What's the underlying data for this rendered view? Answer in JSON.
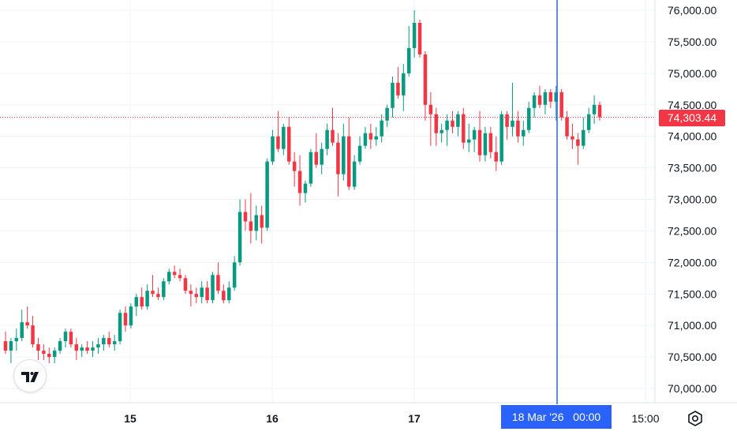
{
  "chart_data": {
    "type": "candlestick",
    "y_axis": {
      "range": [
        69700,
        76300
      ],
      "ticks": [
        "76,000.00",
        "75,500.00",
        "75,000.00",
        "74,500.00",
        "74,000.00",
        "73,500.00",
        "73,000.00",
        "72,500.00",
        "72,000.00",
        "71,500.00",
        "71,000.00",
        "70,500.00",
        "70,000.00"
      ],
      "tick_values": [
        76000,
        75500,
        75000,
        74500,
        74000,
        73500,
        73000,
        72500,
        72000,
        71500,
        71000,
        70500,
        70000
      ]
    },
    "x_axis": {
      "tick_labels": [
        "15",
        "16",
        "17",
        "15:00"
      ]
    },
    "grid": true,
    "last_price": 74303.44,
    "last_price_label": "74,303.44",
    "crosshair_label": "18 Mar '26   00:00",
    "candles": [
      [
        70750,
        70900,
        70550,
        70600
      ],
      [
        70600,
        70800,
        70400,
        70750
      ],
      [
        70750,
        70950,
        70600,
        70800
      ],
      [
        70800,
        71250,
        70750,
        71050
      ],
      [
        71050,
        71300,
        70950,
        71000
      ],
      [
        71000,
        71150,
        70650,
        70700
      ],
      [
        70700,
        70800,
        70450,
        70600
      ],
      [
        70600,
        70700,
        70450,
        70550
      ],
      [
        70550,
        70650,
        70400,
        70500
      ],
      [
        70500,
        70650,
        70400,
        70600
      ],
      [
        70600,
        70800,
        70550,
        70750
      ],
      [
        70750,
        70950,
        70650,
        70900
      ],
      [
        70900,
        70950,
        70650,
        70700
      ],
      [
        70700,
        70800,
        70450,
        70600
      ],
      [
        70600,
        70700,
        70500,
        70650
      ],
      [
        70650,
        70750,
        70550,
        70600
      ],
      [
        70600,
        70750,
        70500,
        70650
      ],
      [
        70650,
        70800,
        70550,
        70700
      ],
      [
        70700,
        70850,
        70600,
        70800
      ],
      [
        70800,
        70900,
        70650,
        70700
      ],
      [
        70700,
        70850,
        70600,
        70750
      ],
      [
        70750,
        71250,
        70700,
        71200
      ],
      [
        71200,
        71300,
        70900,
        71000
      ],
      [
        71000,
        71350,
        70950,
        71300
      ],
      [
        71300,
        71500,
        71150,
        71450
      ],
      [
        71450,
        71600,
        71250,
        71300
      ],
      [
        71300,
        71650,
        71250,
        71550
      ],
      [
        71550,
        71800,
        71450,
        71500
      ],
      [
        71500,
        71600,
        71400,
        71450
      ],
      [
        71450,
        71750,
        71400,
        71700
      ],
      [
        71700,
        71900,
        71650,
        71850
      ],
      [
        71850,
        71950,
        71750,
        71800
      ],
      [
        71800,
        71900,
        71700,
        71750
      ],
      [
        71750,
        71800,
        71500,
        71550
      ],
      [
        71550,
        71650,
        71300,
        71500
      ],
      [
        71500,
        71600,
        71350,
        71450
      ],
      [
        71450,
        71700,
        71350,
        71600
      ],
      [
        71600,
        71700,
        71350,
        71400
      ],
      [
        71400,
        71850,
        71350,
        71800
      ],
      [
        71800,
        72000,
        71500,
        71550
      ],
      [
        71550,
        71650,
        71350,
        71400
      ],
      [
        71400,
        71700,
        71350,
        71600
      ],
      [
        71600,
        72100,
        71550,
        72000
      ],
      [
        72000,
        73000,
        71950,
        72800
      ],
      [
        72800,
        73000,
        72500,
        72650
      ],
      [
        72650,
        73100,
        72300,
        72500
      ],
      [
        72500,
        72900,
        72350,
        72750
      ],
      [
        72750,
        72900,
        72300,
        72550
      ],
      [
        72550,
        73650,
        72500,
        73600
      ],
      [
        73600,
        74100,
        73550,
        74000
      ],
      [
        74000,
        74400,
        73750,
        73800
      ],
      [
        73800,
        74200,
        73700,
        74150
      ],
      [
        74150,
        74300,
        73550,
        73600
      ],
      [
        73600,
        73750,
        73200,
        73450
      ],
      [
        73450,
        73700,
        72900,
        73100
      ],
      [
        73100,
        73300,
        72950,
        73250
      ],
      [
        73250,
        73800,
        73200,
        73750
      ],
      [
        73750,
        74050,
        73500,
        73550
      ],
      [
        73550,
        73900,
        73400,
        73800
      ],
      [
        73800,
        74200,
        73700,
        74100
      ],
      [
        74100,
        74450,
        73850,
        73900
      ],
      [
        73900,
        74050,
        73050,
        73400
      ],
      [
        73400,
        74200,
        73300,
        74000
      ],
      [
        74000,
        74300,
        73150,
        73200
      ],
      [
        73200,
        73700,
        73150,
        73600
      ],
      [
        73600,
        74000,
        73550,
        73850
      ],
      [
        73850,
        74150,
        73800,
        74050
      ],
      [
        74050,
        74200,
        73800,
        73950
      ],
      [
        73950,
        74150,
        73850,
        74000
      ],
      [
        74000,
        74350,
        73900,
        74250
      ],
      [
        74250,
        74500,
        74150,
        74450
      ],
      [
        74450,
        74950,
        74300,
        74850
      ],
      [
        74850,
        75100,
        74600,
        74650
      ],
      [
        74650,
        75150,
        74400,
        75000
      ],
      [
        75000,
        75750,
        74950,
        75400
      ],
      [
        75400,
        76000,
        75250,
        75800
      ],
      [
        75800,
        75850,
        75250,
        75300
      ],
      [
        75300,
        75350,
        74250,
        74500
      ],
      [
        74500,
        74700,
        73850,
        74350
      ],
      [
        74350,
        74450,
        73850,
        74050
      ],
      [
        74050,
        74200,
        73900,
        74100
      ],
      [
        74100,
        74350,
        73850,
        74250
      ],
      [
        74250,
        74400,
        74050,
        74150
      ],
      [
        74150,
        74400,
        74000,
        74350
      ],
      [
        74350,
        74450,
        73800,
        73900
      ],
      [
        73900,
        74200,
        73750,
        73950
      ],
      [
        73950,
        74150,
        73750,
        74100
      ],
      [
        74100,
        74400,
        73600,
        73700
      ],
      [
        73700,
        74150,
        73600,
        74050
      ],
      [
        74050,
        74150,
        73650,
        73750
      ],
      [
        73750,
        74000,
        73450,
        73600
      ],
      [
        73600,
        74400,
        73550,
        74350
      ],
      [
        74350,
        74400,
        73950,
        74150
      ],
      [
        74150,
        74850,
        74000,
        74250
      ],
      [
        74250,
        74400,
        73900,
        74000
      ],
      [
        74000,
        74250,
        73850,
        74100
      ],
      [
        74100,
        74550,
        74050,
        74450
      ],
      [
        74450,
        74700,
        74300,
        74650
      ],
      [
        74650,
        74800,
        74450,
        74500
      ],
      [
        74500,
        74750,
        74350,
        74700
      ],
      [
        74700,
        74750,
        74450,
        74550
      ],
      [
        74550,
        74800,
        74250,
        74700
      ],
      [
        74700,
        74750,
        74250,
        74300
      ],
      [
        74300,
        74400,
        73950,
        74000
      ],
      [
        74000,
        74200,
        73800,
        73950
      ],
      [
        73950,
        74050,
        73550,
        73850
      ],
      [
        73850,
        74300,
        73800,
        74100
      ],
      [
        74100,
        74450,
        74050,
        74350
      ],
      [
        74350,
        74650,
        74200,
        74500
      ],
      [
        74500,
        74550,
        74250,
        74303
      ]
    ]
  },
  "colors": {
    "up": "#089981",
    "down": "#f23645",
    "crosshair": "#2962ff",
    "grid": "#f0f3fa",
    "price_line": "#f23645"
  },
  "icons": {
    "logo": "tradingview-logo-icon",
    "settings": "settings-icon"
  }
}
